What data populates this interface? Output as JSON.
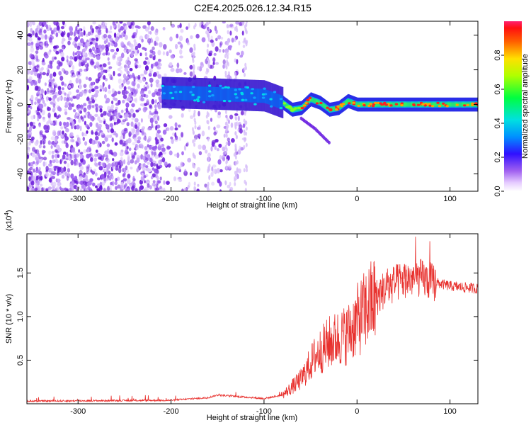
{
  "title": "C2E4.2025.026.12.34.R15",
  "chart_data": [
    {
      "type": "heatmap",
      "xlabel": "Height of straight line (km)",
      "ylabel": "Frequency (Hz)",
      "xlim": [
        -355,
        130
      ],
      "ylim": [
        -50,
        48
      ],
      "xticks": [
        -300,
        -200,
        -100,
        0,
        100
      ],
      "yticks": [
        -40,
        -20,
        0,
        20,
        40
      ],
      "colorbar": {
        "label": "Normalized spectral amplitude",
        "range": [
          0,
          1
        ],
        "ticks": [
          "0.0",
          "0.2",
          "0.4",
          "0.6",
          "0.8"
        ]
      },
      "features": {
        "noise_region_x": [
          -355,
          -120
        ],
        "signal_start_x": -210,
        "signal_trace": [
          {
            "x": -210,
            "y": 7
          },
          {
            "x": -150,
            "y": 6
          },
          {
            "x": -100,
            "y": 5
          },
          {
            "x": -80,
            "y": 1
          },
          {
            "x": -70,
            "y": -3
          },
          {
            "x": -60,
            "y": -2
          },
          {
            "x": -50,
            "y": 3
          },
          {
            "x": -40,
            "y": 1
          },
          {
            "x": -30,
            "y": -3
          },
          {
            "x": -20,
            "y": -2
          },
          {
            "x": -10,
            "y": 2
          },
          {
            "x": 0,
            "y": 0
          },
          {
            "x": 50,
            "y": 0
          },
          {
            "x": 130,
            "y": 0
          }
        ],
        "branch_trace": [
          {
            "x": -60,
            "y": -8
          },
          {
            "x": -45,
            "y": -14
          },
          {
            "x": -30,
            "y": -22
          }
        ]
      }
    },
    {
      "type": "line",
      "xlabel": "Height of straight line (km)",
      "ylabel": "SNR (10 * v/v)",
      "yscale_label": "(x10",
      "yscale_exp": "4",
      "yscale_close": ")",
      "xlim": [
        -355,
        130
      ],
      "ylim": [
        0.0,
        1.95
      ],
      "xticks": [
        -300,
        -200,
        -100,
        0,
        100
      ],
      "yticks": [
        "0.5",
        "1.0",
        "1.5"
      ],
      "color": "#e8312e",
      "series": [
        {
          "envelope": [
            {
              "x": -355,
              "y": 0.03
            },
            {
              "x": -200,
              "y": 0.04
            },
            {
              "x": -160,
              "y": 0.07
            },
            {
              "x": -150,
              "y": 0.1
            },
            {
              "x": -100,
              "y": 0.06
            },
            {
              "x": -80,
              "y": 0.1
            },
            {
              "x": -60,
              "y": 0.28
            },
            {
              "x": -45,
              "y": 0.55
            },
            {
              "x": -30,
              "y": 0.7
            },
            {
              "x": -10,
              "y": 0.8
            },
            {
              "x": 0,
              "y": 0.95
            },
            {
              "x": 15,
              "y": 1.15
            },
            {
              "x": 30,
              "y": 1.32
            },
            {
              "x": 50,
              "y": 1.42
            },
            {
              "x": 65,
              "y": 1.45
            },
            {
              "x": 80,
              "y": 1.4
            },
            {
              "x": 100,
              "y": 1.35
            },
            {
              "x": 130,
              "y": 1.32
            }
          ]
        }
      ]
    }
  ]
}
